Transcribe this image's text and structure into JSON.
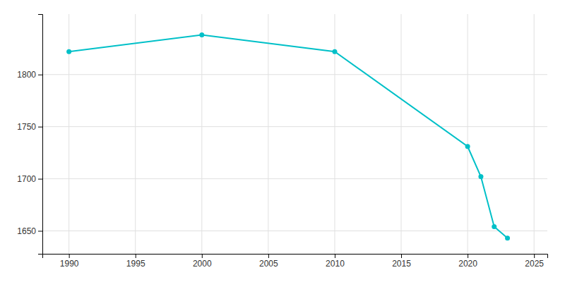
{
  "chart_data": {
    "type": "line",
    "x": [
      1990,
      2000,
      2010,
      2020,
      2021,
      2022,
      2023
    ],
    "values": [
      1822,
      1838,
      1822,
      1731,
      1702,
      1654,
      1643
    ],
    "color": "#00c0c8",
    "marker": "circle",
    "xlim": [
      1988,
      2026
    ],
    "ylim": [
      1628,
      1858
    ],
    "xticks": [
      1990,
      1995,
      2000,
      2005,
      2010,
      2015,
      2020,
      2025
    ],
    "yticks": [
      1650,
      1700,
      1750,
      1800
    ],
    "grid": true
  }
}
